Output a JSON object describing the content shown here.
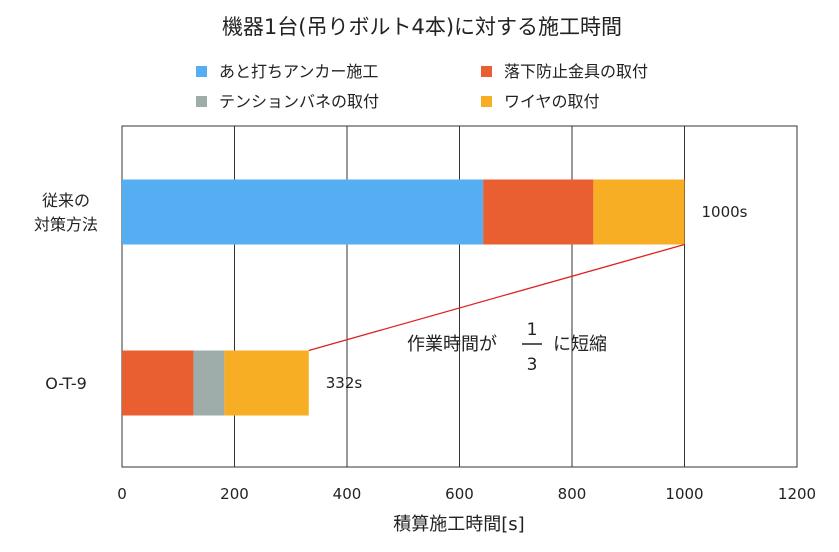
{
  "chart_data": {
    "type": "bar",
    "orientation": "horizontal",
    "stacked": true,
    "title": "機器1台(吊りボルト4本)に対する施工時間",
    "xlabel": "積算施工時間[s]",
    "ylabel": "",
    "xlim": [
      0,
      1200
    ],
    "x_ticks": [
      0,
      200,
      400,
      600,
      800,
      1000,
      1200
    ],
    "grid": "vertical",
    "legend_position": "top",
    "categories": [
      {
        "label_lines": [
          "従来の",
          "対策方法"
        ]
      },
      {
        "label_lines": [
          "O-T-9"
        ]
      }
    ],
    "series": [
      {
        "name": "あと打ちアンカー施工",
        "color": "#56aef2",
        "values": [
          642,
          0
        ]
      },
      {
        "name": "落下防止金具の取付",
        "color": "#ea5f32",
        "values": [
          196,
          127
        ]
      },
      {
        "name": "テンションバネの取付",
        "color": "#9eada9",
        "values": [
          0,
          55
        ]
      },
      {
        "name": "ワイヤの取付",
        "color": "#f7ae24",
        "values": [
          162,
          150
        ]
      }
    ],
    "totals": [
      {
        "value": 1000,
        "label": "1000s"
      },
      {
        "value": 332,
        "label": "332s"
      }
    ],
    "annotation": {
      "text_before": "作業時間が",
      "fraction_numerator": "1",
      "fraction_denominator": "3",
      "text_after": "に短縮",
      "line_color": "#e02020"
    }
  }
}
